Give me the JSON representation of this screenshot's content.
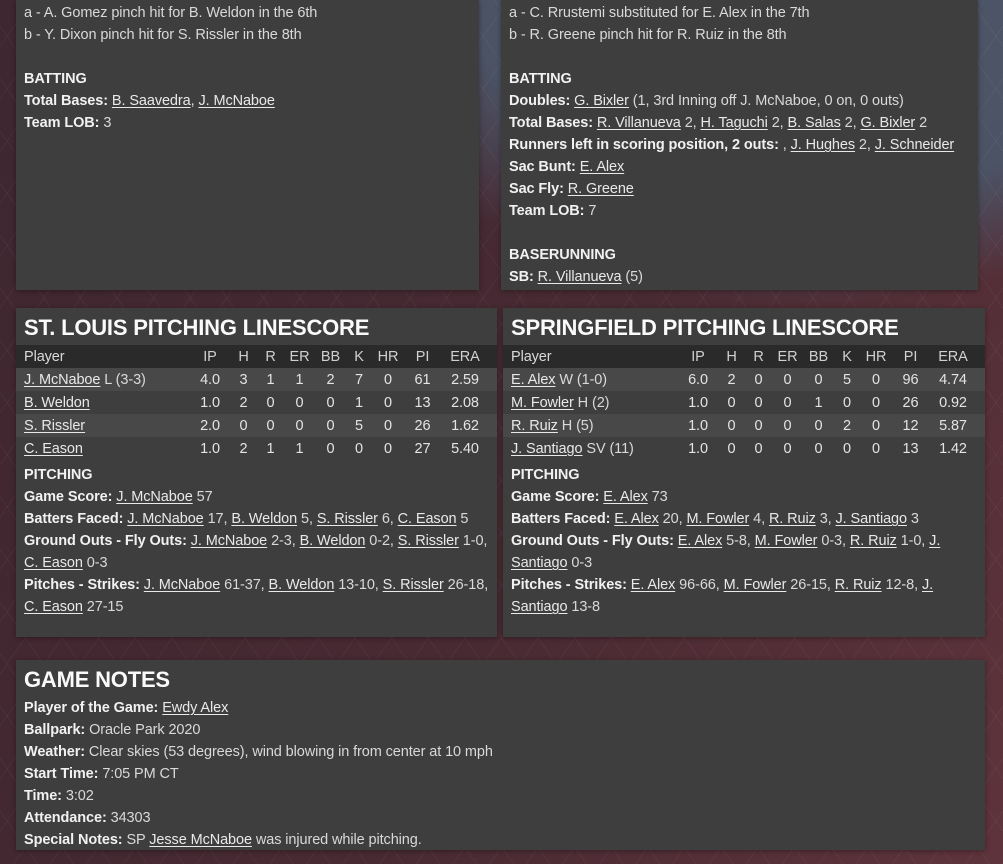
{
  "colors": {
    "panel_bg": "#3e3e3e",
    "table_header_bg": "#2a2a2a",
    "row_alt_bg": "#484848",
    "bg_maroon": "#4a2a32",
    "bg_slate": "#4c5568",
    "text": "#d9d9d9",
    "link": "#e9e9e9"
  },
  "away": {
    "substitution_notes": [
      "a - A. Gomez pinch hit for B. Weldon in the 6th",
      "b - Y. Dixon pinch hit for S. Rissler in the 8th"
    ],
    "batting_title": "BATTING",
    "batting_lines": [
      {
        "label": "Total Bases:",
        "segments": [
          {
            "l": "B. Saavedra"
          },
          ", ",
          {
            "l": "J. McNaboe"
          }
        ]
      },
      {
        "label": "Team LOB:",
        "segments": [
          "3"
        ]
      }
    ]
  },
  "home": {
    "substitution_notes": [
      "a - C. Rrustemi substituted for E. Alex in the 7th",
      "b - R. Greene pinch hit for R. Ruiz in the 8th"
    ],
    "batting_title": "BATTING",
    "batting_lines": [
      {
        "label": "Doubles:",
        "segments": [
          {
            "l": "G. Bixler"
          },
          " (1, 3rd Inning off J. McNaboe, 0 on, 0 outs)"
        ]
      },
      {
        "label": "Total Bases:",
        "segments": [
          {
            "l": "R. Villanueva"
          },
          " 2, ",
          {
            "l": "H. Taguchi"
          },
          " 2, ",
          {
            "l": "B. Salas"
          },
          " 2, ",
          {
            "l": "G. Bixler"
          },
          " 2"
        ]
      },
      {
        "label": "Runners left in scoring position, 2 outs:",
        "segments": [
          ", ",
          {
            "l": "J. Hughes"
          },
          " 2, ",
          {
            "l": "J. Schneider"
          }
        ]
      },
      {
        "label": "Sac Bunt:",
        "segments": [
          {
            "l": "E. Alex"
          }
        ]
      },
      {
        "label": "Sac Fly:",
        "segments": [
          {
            "l": "R. Greene"
          }
        ]
      },
      {
        "label": "Team LOB:",
        "segments": [
          "7"
        ]
      }
    ],
    "baserunning_title": "BASERUNNING",
    "baserunning_lines": [
      {
        "label": "SB:",
        "segments": [
          {
            "l": "R. Villanueva"
          },
          " (5)"
        ]
      }
    ]
  },
  "away_pitching": {
    "title": "ST. LOUIS PITCHING LINESCORE",
    "linescore": {
      "columns": [
        "Player",
        "IP",
        "H",
        "R",
        "ER",
        "BB",
        "K",
        "HR",
        "PI",
        "ERA"
      ],
      "rows": [
        {
          "player": "J. McNaboe",
          "suffix": "L (3-3)",
          "stats": [
            "4.0",
            "3",
            "1",
            "1",
            "2",
            "7",
            "0",
            "61",
            "2.59"
          ]
        },
        {
          "player": "B. Weldon",
          "suffix": "",
          "stats": [
            "1.0",
            "2",
            "0",
            "0",
            "0",
            "1",
            "0",
            "13",
            "2.08"
          ]
        },
        {
          "player": "S. Rissler",
          "suffix": "",
          "stats": [
            "2.0",
            "0",
            "0",
            "0",
            "0",
            "5",
            "0",
            "26",
            "1.62"
          ]
        },
        {
          "player": "C. Eason",
          "suffix": "",
          "stats": [
            "1.0",
            "2",
            "1",
            "1",
            "0",
            "0",
            "0",
            "27",
            "5.40"
          ]
        }
      ]
    },
    "pitching_title": "PITCHING",
    "pitching_lines": [
      {
        "label": "Game Score:",
        "segments": [
          {
            "l": "J. McNaboe"
          },
          " 57"
        ]
      },
      {
        "label": "Batters Faced:",
        "segments": [
          {
            "l": "J. McNaboe"
          },
          " 17, ",
          {
            "l": "B. Weldon"
          },
          " 5, ",
          {
            "l": "S. Rissler"
          },
          " 6, ",
          {
            "l": "C. Eason"
          },
          " 5"
        ]
      },
      {
        "label": "Ground Outs - Fly Outs:",
        "segments": [
          {
            "l": "J. McNaboe"
          },
          " 2-3, ",
          {
            "l": "B. Weldon"
          },
          " 0-2, ",
          {
            "l": "S. Rissler"
          },
          " 1-0, ",
          {
            "l": "C. Eason"
          },
          " 0-3"
        ]
      },
      {
        "label": "Pitches - Strikes:",
        "segments": [
          {
            "l": "J. McNaboe"
          },
          " 61-37, ",
          {
            "l": "B. Weldon"
          },
          " 13-10, ",
          {
            "l": "S. Rissler"
          },
          " 26-18, ",
          {
            "l": "C. Eason"
          },
          " 27-15"
        ]
      }
    ]
  },
  "home_pitching": {
    "title": "SPRINGFIELD PITCHING LINESCORE",
    "linescore": {
      "columns": [
        "Player",
        "IP",
        "H",
        "R",
        "ER",
        "BB",
        "K",
        "HR",
        "PI",
        "ERA"
      ],
      "rows": [
        {
          "player": "E. Alex",
          "suffix": "W (1-0)",
          "stats": [
            "6.0",
            "2",
            "0",
            "0",
            "0",
            "5",
            "0",
            "96",
            "4.74"
          ]
        },
        {
          "player": "M. Fowler",
          "suffix": "H (2)",
          "stats": [
            "1.0",
            "0",
            "0",
            "0",
            "1",
            "0",
            "0",
            "26",
            "0.92"
          ]
        },
        {
          "player": "R. Ruiz",
          "suffix": "H (5)",
          "stats": [
            "1.0",
            "0",
            "0",
            "0",
            "0",
            "2",
            "0",
            "12",
            "5.87"
          ]
        },
        {
          "player": "J. Santiago",
          "suffix": "SV (11)",
          "stats": [
            "1.0",
            "0",
            "0",
            "0",
            "0",
            "0",
            "0",
            "13",
            "1.42"
          ]
        }
      ]
    },
    "pitching_title": "PITCHING",
    "pitching_lines": [
      {
        "label": "Game Score:",
        "segments": [
          {
            "l": "E. Alex"
          },
          " 73"
        ]
      },
      {
        "label": "Batters Faced:",
        "segments": [
          {
            "l": "E. Alex"
          },
          " 20, ",
          {
            "l": "M. Fowler"
          },
          " 4, ",
          {
            "l": "R. Ruiz"
          },
          " 3, ",
          {
            "l": "J. Santiago"
          },
          " 3"
        ]
      },
      {
        "label": "Ground Outs - Fly Outs:",
        "segments": [
          {
            "l": "E. Alex"
          },
          " 5-8, ",
          {
            "l": "M. Fowler"
          },
          " 0-3, ",
          {
            "l": "R. Ruiz"
          },
          " 1-0, ",
          {
            "l": "J. Santiago"
          },
          " 0-3"
        ]
      },
      {
        "label": "Pitches - Strikes:",
        "segments": [
          {
            "l": "E. Alex"
          },
          " 96-66, ",
          {
            "l": "M. Fowler"
          },
          " 26-15, ",
          {
            "l": "R. Ruiz"
          },
          " 12-8, ",
          {
            "l": "J. Santiago"
          },
          " 13-8"
        ]
      }
    ]
  },
  "game_notes": {
    "title": "GAME NOTES",
    "lines": [
      {
        "label": "Player of the Game:",
        "segments": [
          {
            "l": "Ewdy Alex"
          }
        ]
      },
      {
        "label": "Ballpark:",
        "segments": [
          "Oracle Park 2020"
        ]
      },
      {
        "label": "Weather:",
        "segments": [
          "Clear skies (53 degrees), wind blowing in from center at 10 mph"
        ]
      },
      {
        "label": "Start Time:",
        "segments": [
          "7:05 PM CT"
        ]
      },
      {
        "label": "Time:",
        "segments": [
          "3:02"
        ]
      },
      {
        "label": "Attendance:",
        "segments": [
          "34303"
        ]
      },
      {
        "label": "Special Notes:",
        "segments": [
          "SP ",
          {
            "l": "Jesse McNaboe"
          },
          " was injured while pitching."
        ]
      }
    ]
  }
}
